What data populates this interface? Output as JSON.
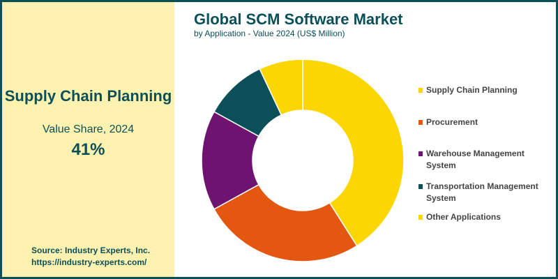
{
  "panel": {
    "headline": "Supply Chain Planning",
    "subline": "Value Share, 2024",
    "value": "41%",
    "source": "Source: Industry Experts, Inc.",
    "url": "https://industry-experts.com/"
  },
  "chart_data": {
    "type": "pie",
    "title": "Global SCM Software Market",
    "subtitle": "by Application - Value 2024 (US$ Million)",
    "donut": true,
    "legend_position": "right",
    "categories": [
      "Supply Chain Planning",
      "Procurement",
      "Warehouse Management System",
      "Transportation Management System",
      "Other Applications"
    ],
    "values": [
      41,
      26,
      16,
      10,
      7
    ],
    "unit": "% share (estimated)",
    "colors": [
      "#fcd600",
      "#e35711",
      "#6e1470",
      "#0b4f58",
      "#fcd600"
    ]
  }
}
